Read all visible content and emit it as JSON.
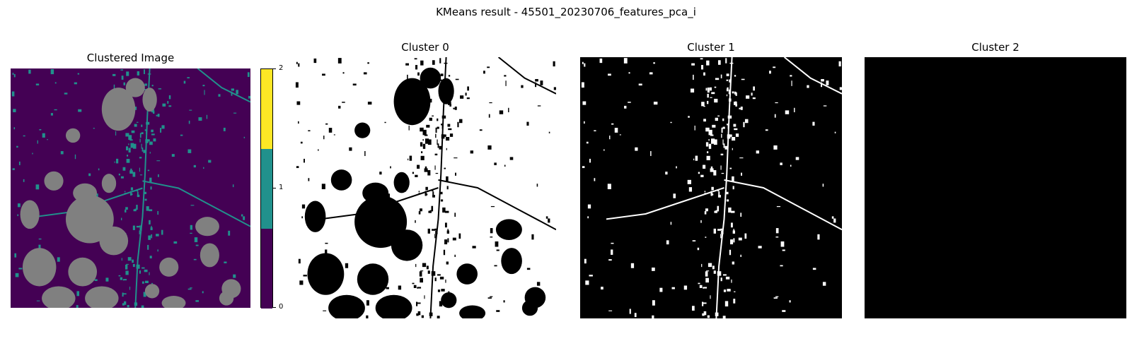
{
  "figure": {
    "suptitle": "KMeans result - 45501_20230706_features_pca_i"
  },
  "panels": [
    {
      "title": "Clustered Image",
      "kind": "label-map"
    },
    {
      "title": "Cluster 0",
      "kind": "binary-mask"
    },
    {
      "title": "Cluster 1",
      "kind": "binary-mask"
    },
    {
      "title": "Cluster 2",
      "kind": "binary-mask"
    }
  ],
  "colorbar": {
    "ticks": [
      "2",
      "1",
      "0"
    ],
    "segments": [
      {
        "value": 2,
        "color": "#fde725"
      },
      {
        "value": 1,
        "color": "#21918c"
      },
      {
        "value": 0,
        "color": "#440154"
      }
    ]
  },
  "colors": {
    "cluster0": "#440154",
    "cluster1": "#21918c",
    "cluster2": "#fde725",
    "masked": "#808080",
    "mask_on": "#ffffff",
    "mask_off": "#000000"
  }
}
